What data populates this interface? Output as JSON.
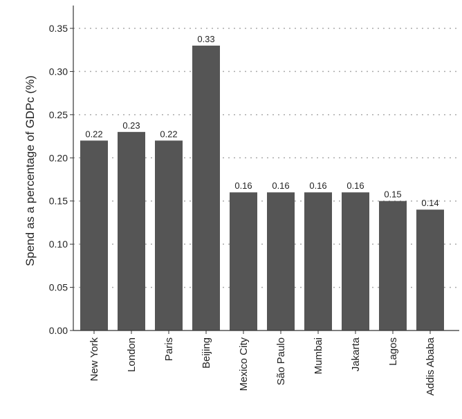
{
  "chart_data": {
    "type": "bar",
    "title": "",
    "xlabel": "",
    "ylabel": "Spend as a percentage of GDPc (%)",
    "categories": [
      "New York",
      "London",
      "Paris",
      "Beijing",
      "Mexico City",
      "São Paulo",
      "Mumbai",
      "Jakarta",
      "Lagos",
      "Addis Ababa"
    ],
    "values": [
      0.22,
      0.23,
      0.22,
      0.33,
      0.16,
      0.16,
      0.16,
      0.16,
      0.15,
      0.14
    ],
    "data_labels": [
      "0.22",
      "0.23",
      "0.22",
      "0.33",
      "0.16",
      "0.16",
      "0.16",
      "0.16",
      "0.15",
      "0.14"
    ],
    "yticks": [
      0.0,
      0.05,
      0.1,
      0.15,
      0.2,
      0.25,
      0.3,
      0.35
    ],
    "ytick_labels": [
      "0.00",
      "0.05",
      "0.10",
      "0.15",
      "0.20",
      "0.25",
      "0.30",
      "0.35"
    ],
    "ylim": [
      0,
      0.37
    ],
    "grid": "horizontal dotted",
    "legend": "none",
    "bar_color": "#555555"
  }
}
